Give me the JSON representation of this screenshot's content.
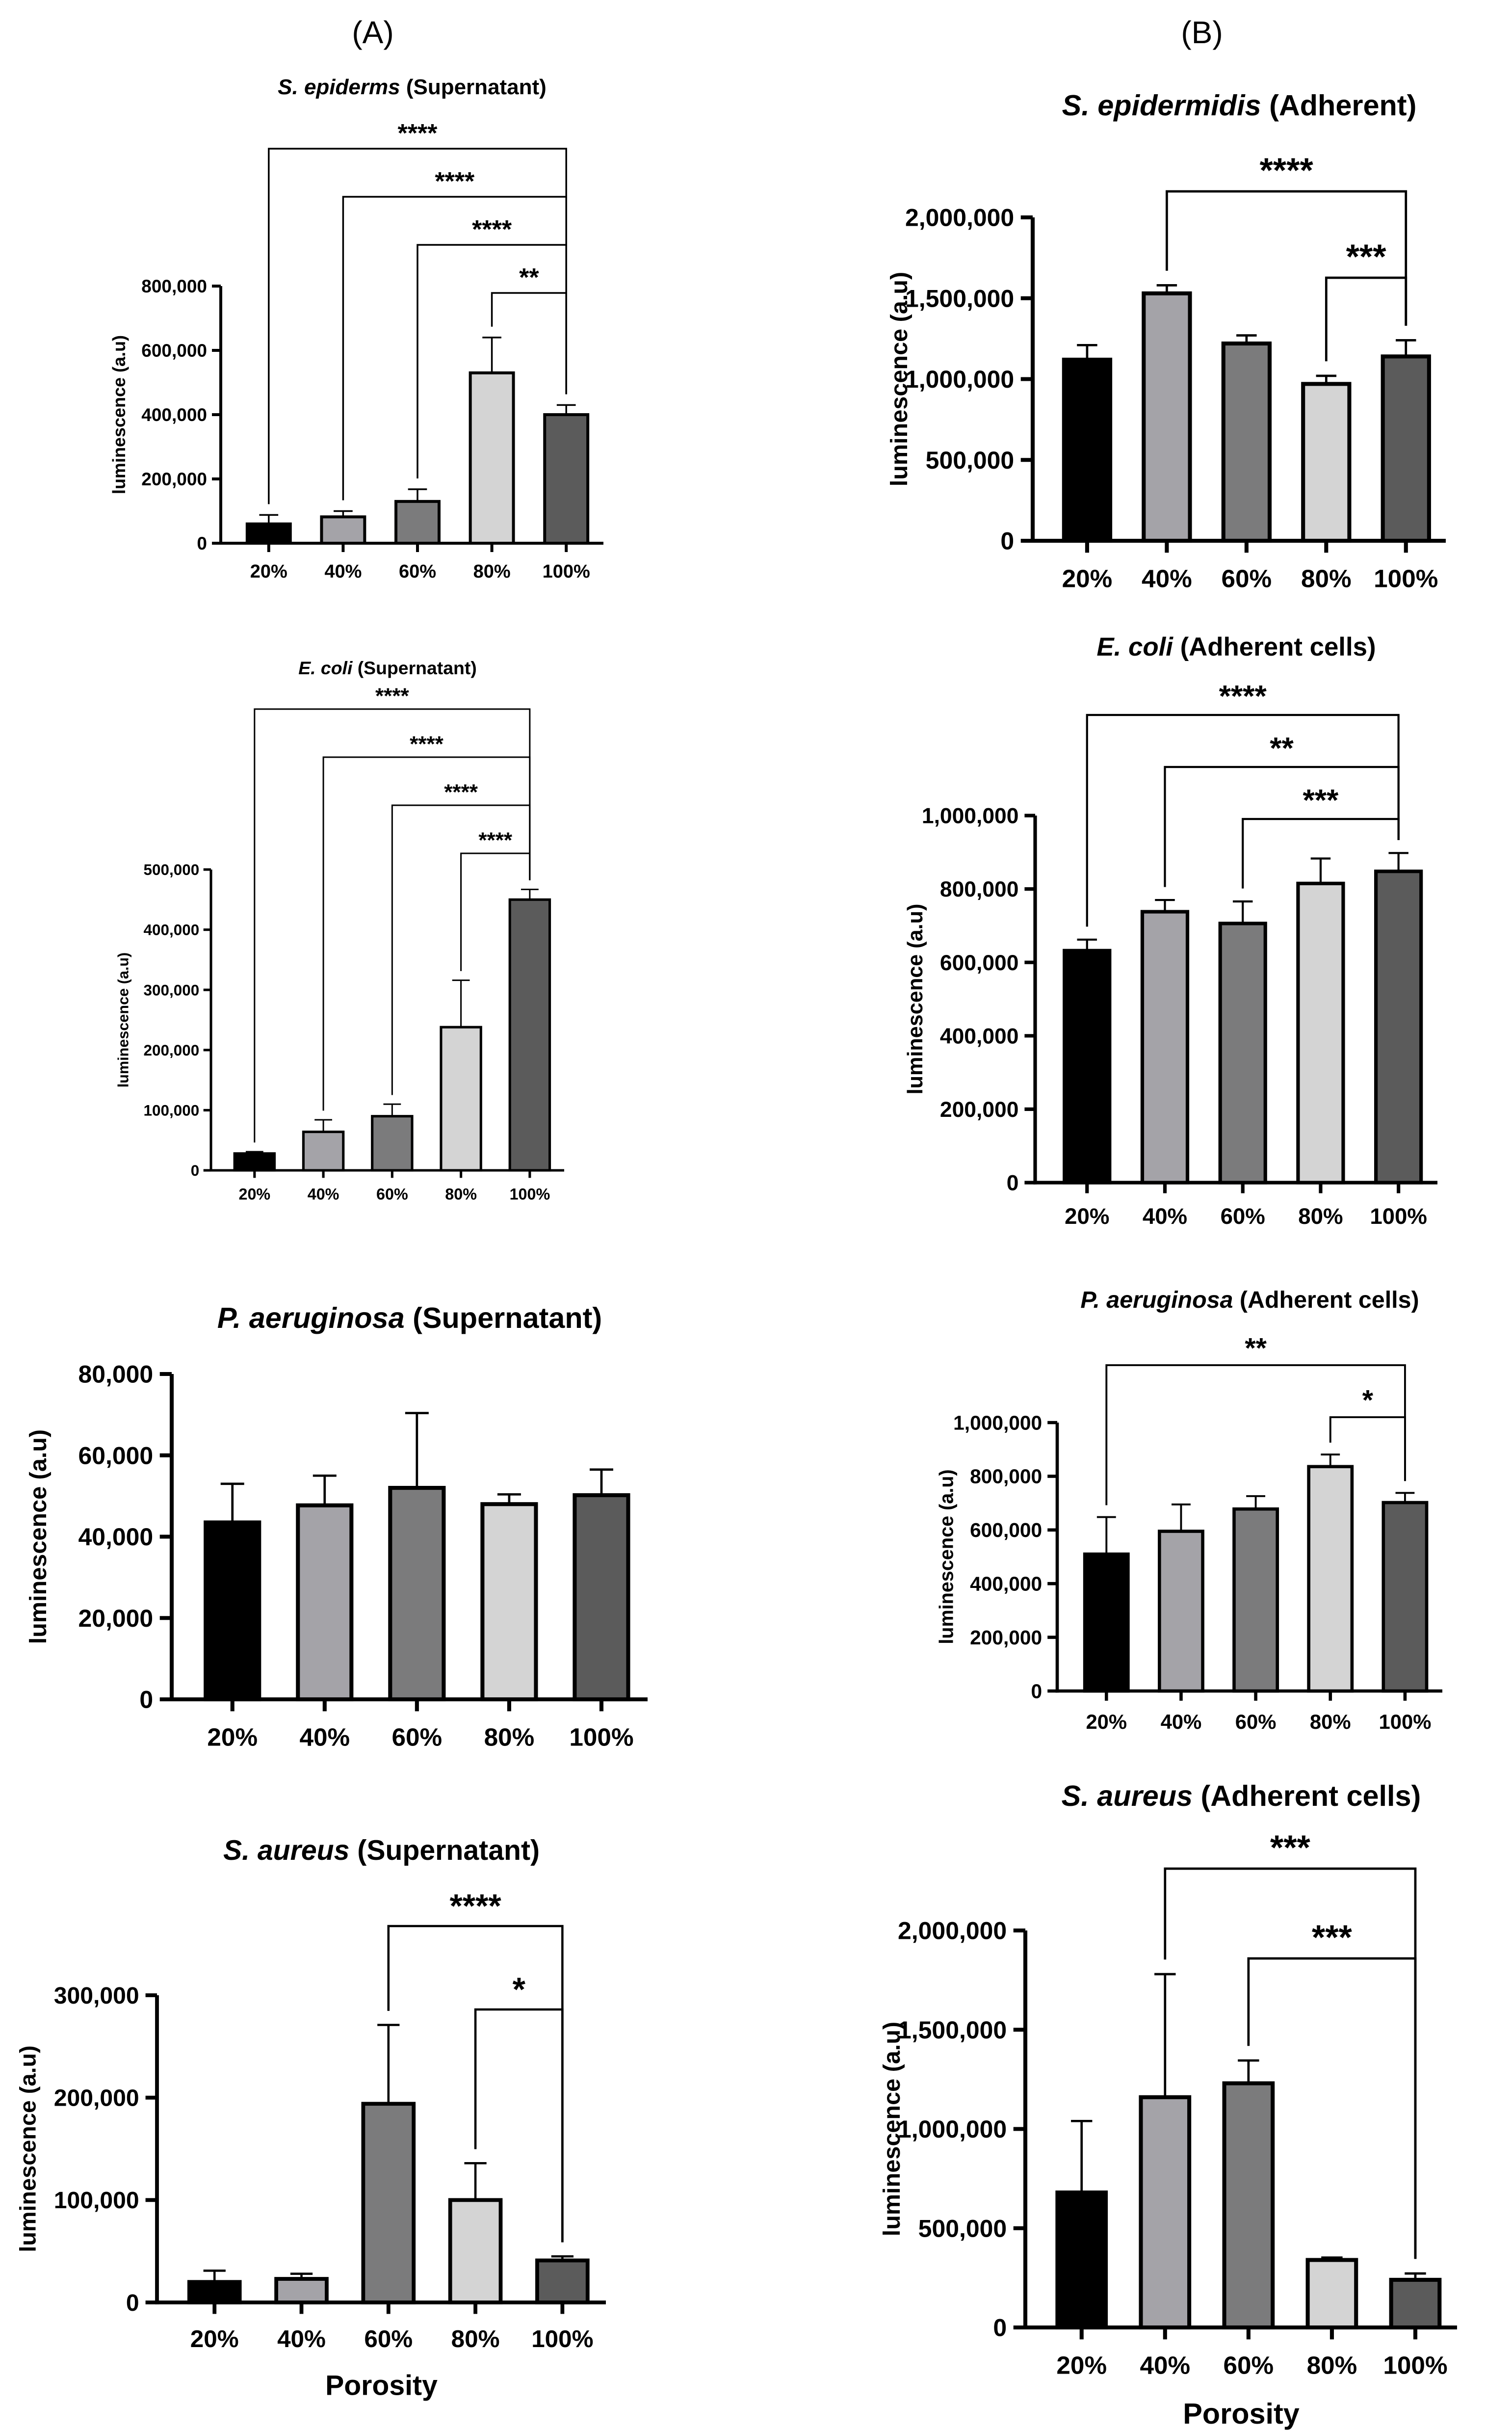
{
  "panel_labels": [
    "(A)",
    "(B)"
  ],
  "colors": {
    "bars": [
      "#000000",
      "#a4a3a8",
      "#7b7b7c",
      "#d4d4d4",
      "#5b5b5b"
    ],
    "axis": "#000000"
  },
  "chart_data": [
    {
      "id": "se-sup",
      "type": "bar",
      "title_italic": "S. epiderms",
      "title_rest": " (Supernatant)",
      "categories": [
        "20%",
        "40%",
        "60%",
        "80%",
        "100%"
      ],
      "values": [
        60000,
        82000,
        130000,
        530000,
        400000
      ],
      "errors": [
        28000,
        18000,
        38000,
        110000,
        30000
      ],
      "ylim": [
        0,
        800000
      ],
      "ticks": [
        0,
        200000,
        400000,
        600000,
        800000
      ],
      "tick_labels": [
        "0",
        "200,000",
        "400,000",
        "600,000",
        "800,000"
      ],
      "ylabel": "luminescence (a.u)",
      "xlabel": "",
      "significance": [
        {
          "from": 0,
          "to": 4,
          "label": "****"
        },
        {
          "from": 1,
          "to": 4,
          "label": "****"
        },
        {
          "from": 2,
          "to": 4,
          "label": "****"
        },
        {
          "from": 3,
          "to": 4,
          "label": "**"
        }
      ]
    },
    {
      "id": "ec-sup",
      "type": "bar",
      "title_italic": "E. coli",
      "title_rest": " (Supernatant)",
      "categories": [
        "20%",
        "40%",
        "60%",
        "80%",
        "100%"
      ],
      "values": [
        28000,
        64000,
        90000,
        238000,
        450000
      ],
      "errors": [
        3000,
        20000,
        20000,
        78000,
        17000
      ],
      "ylim": [
        0,
        500000
      ],
      "ticks": [
        0,
        100000,
        200000,
        300000,
        400000,
        500000
      ],
      "tick_labels": [
        "0",
        "100,000",
        "200,000",
        "300,000",
        "400,000",
        "500,000"
      ],
      "ylabel": "luminescence (a.u)",
      "xlabel": "",
      "significance": [
        {
          "from": 0,
          "to": 4,
          "label": "****"
        },
        {
          "from": 1,
          "to": 4,
          "label": "****"
        },
        {
          "from": 2,
          "to": 4,
          "label": "****"
        },
        {
          "from": 3,
          "to": 4,
          "label": "****"
        }
      ]
    },
    {
      "id": "pa-sup",
      "type": "bar",
      "title_italic": "P. aeruginosa",
      "title_rest": " (Supernatant)",
      "categories": [
        "20%",
        "40%",
        "60%",
        "80%",
        "100%"
      ],
      "values": [
        43500,
        47700,
        52000,
        48000,
        50200
      ],
      "errors": [
        9500,
        7300,
        18400,
        2400,
        6300
      ],
      "ylim": [
        0,
        80000
      ],
      "ticks": [
        0,
        20000,
        40000,
        60000,
        80000
      ],
      "tick_labels": [
        "0",
        "20,000",
        "40,000",
        "60,000",
        "80,000"
      ],
      "ylabel": "luminescence (a.u)",
      "xlabel": "",
      "significance": []
    },
    {
      "id": "sa-sup",
      "type": "bar",
      "title_italic": "S. aureus",
      "title_rest": " (Supernatant)",
      "categories": [
        "20%",
        "40%",
        "60%",
        "80%",
        "100%"
      ],
      "values": [
        20000,
        23000,
        194000,
        100000,
        41000
      ],
      "errors": [
        11000,
        5000,
        77000,
        36000,
        4000
      ],
      "ylim": [
        0,
        300000
      ],
      "ticks": [
        0,
        100000,
        200000,
        300000
      ],
      "tick_labels": [
        "0",
        "100,000",
        "200,000",
        "300,000"
      ],
      "ylabel": "luminescence (a.u)",
      "xlabel": "Porosity",
      "significance": [
        {
          "from": 2,
          "to": 4,
          "label": "****"
        },
        {
          "from": 3,
          "to": 4,
          "label": "*"
        }
      ]
    },
    {
      "id": "se-adh",
      "type": "bar",
      "title_italic": "S. epidermidis",
      "title_rest": " (Adherent)",
      "categories": [
        "20%",
        "40%",
        "60%",
        "80%",
        "100%"
      ],
      "values": [
        1120000,
        1530000,
        1220000,
        970000,
        1140000
      ],
      "errors": [
        90000,
        50000,
        50000,
        50000,
        100000
      ],
      "ylim": [
        0,
        2000000
      ],
      "ticks": [
        0,
        500000,
        1000000,
        1500000,
        2000000
      ],
      "tick_labels": [
        "0",
        "500,000",
        "1,000,000",
        "1,500,000",
        "2,000,000"
      ],
      "ylabel": "luminescence (a.u)",
      "xlabel": "",
      "significance": [
        {
          "from": 1,
          "to": 4,
          "label": "****"
        },
        {
          "from": 3,
          "to": 4,
          "label": "***"
        }
      ]
    },
    {
      "id": "ec-adh",
      "type": "bar",
      "title_italic": "E. coli",
      "title_rest": " (Adherent cells)",
      "categories": [
        "20%",
        "40%",
        "60%",
        "80%",
        "100%"
      ],
      "values": [
        632000,
        738000,
        706000,
        815000,
        848000
      ],
      "errors": [
        30000,
        32000,
        60000,
        68000,
        50000
      ],
      "ylim": [
        0,
        1000000
      ],
      "ticks": [
        0,
        200000,
        400000,
        600000,
        800000,
        1000000
      ],
      "tick_labels": [
        "0",
        "200,000",
        "400,000",
        "600,000",
        "800,000",
        "1,000,000"
      ],
      "ylabel": "luminescence (a.u)",
      "xlabel": "",
      "significance": [
        {
          "from": 0,
          "to": 4,
          "label": "****"
        },
        {
          "from": 1,
          "to": 4,
          "label": "**"
        },
        {
          "from": 2,
          "to": 4,
          "label": "***"
        }
      ]
    },
    {
      "id": "pa-adh",
      "type": "bar",
      "title_italic": "P. aeruginosa",
      "title_rest": " (Adherent cells)",
      "categories": [
        "20%",
        "40%",
        "60%",
        "80%",
        "100%"
      ],
      "values": [
        510000,
        595000,
        678000,
        836000,
        702000
      ],
      "errors": [
        138000,
        100000,
        48000,
        45000,
        36000
      ],
      "ylim": [
        0,
        1000000
      ],
      "ticks": [
        0,
        200000,
        400000,
        600000,
        800000,
        1000000
      ],
      "tick_labels": [
        "0",
        "200,000",
        "400,000",
        "600,000",
        "800,000",
        "1,000,000"
      ],
      "ylabel": "luminescence (a.u)",
      "xlabel": "",
      "significance": [
        {
          "from": 0,
          "to": 4,
          "label": "**"
        },
        {
          "from": 3,
          "to": 4,
          "label": "*"
        }
      ]
    },
    {
      "id": "sa-adh",
      "type": "bar",
      "title_italic": "S. aureus",
      "title_rest": " (Adherent cells)",
      "categories": [
        "20%",
        "40%",
        "60%",
        "80%",
        "100%"
      ],
      "values": [
        680000,
        1160000,
        1230000,
        340000,
        240000
      ],
      "errors": [
        360000,
        620000,
        115000,
        12000,
        32000
      ],
      "ylim": [
        0,
        2000000
      ],
      "ticks": [
        0,
        500000,
        1000000,
        1500000,
        2000000
      ],
      "tick_labels": [
        "0",
        "500,000",
        "1,000,000",
        "1,500,000",
        "2,000,000"
      ],
      "ylabel": "luminescence (a.u)",
      "xlabel": "Porosity",
      "significance": [
        {
          "from": 1,
          "to": 4,
          "label": "***"
        },
        {
          "from": 2,
          "to": 4,
          "label": "***"
        }
      ]
    }
  ]
}
